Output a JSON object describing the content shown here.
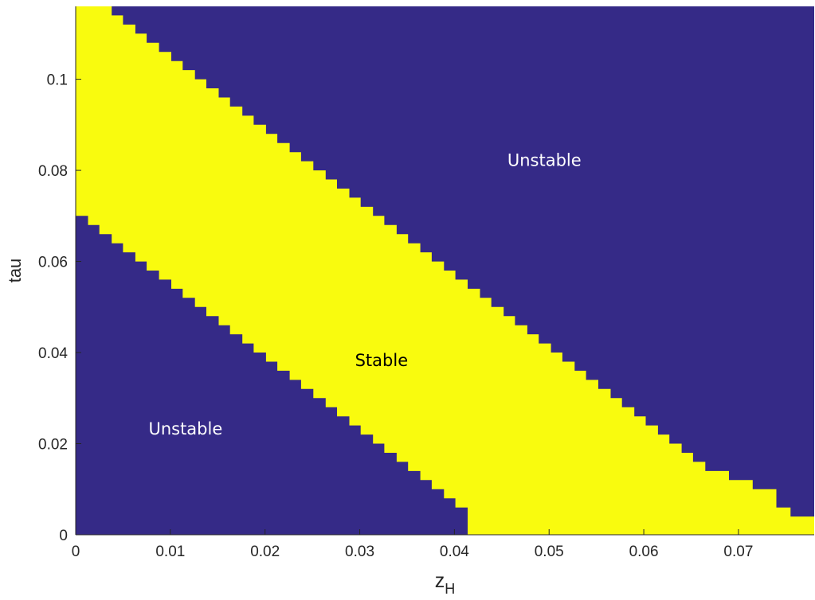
{
  "chart_data": {
    "type": "heatmap",
    "title": "",
    "xlabel": "z",
    "xlabel_subscript": "H",
    "ylabel": "tau",
    "xlim": [
      0,
      0.078
    ],
    "ylim": [
      0,
      0.116
    ],
    "x_ticks": [
      "0",
      "0.01",
      "0.02",
      "0.03",
      "0.04",
      "0.05",
      "0.06",
      "0.07"
    ],
    "y_ticks": [
      "0",
      "0.02",
      "0.04",
      "0.06",
      "0.08",
      "0.1"
    ],
    "grid": false,
    "colors": {
      "unstable": "#352a87",
      "stable": "#f9fb0e",
      "axis": "#262626",
      "unstable_label": "#ffffff",
      "stable_label": "#000000"
    },
    "region_labels": [
      {
        "text": "Unstable",
        "x": 0.0495,
        "y": 0.081,
        "class": "unstable"
      },
      {
        "text": "Stable",
        "x": 0.0323,
        "y": 0.037,
        "class": "stable"
      },
      {
        "text": "Unstable",
        "x": 0.0116,
        "y": 0.022,
        "class": "unstable"
      }
    ],
    "stability_boundaries": {
      "description": "Stable band lies between lower and upper boundary curves; region between them is stable",
      "upper": [
        [
          0.0038,
          0.116
        ],
        [
          0.0038,
          0.114
        ],
        [
          0.005,
          0.114
        ],
        [
          0.005,
          0.112
        ],
        [
          0.0063,
          0.112
        ],
        [
          0.0063,
          0.11
        ],
        [
          0.0075,
          0.11
        ],
        [
          0.0075,
          0.108
        ],
        [
          0.0088,
          0.108
        ],
        [
          0.0088,
          0.106
        ],
        [
          0.0101,
          0.106
        ],
        [
          0.0101,
          0.104
        ],
        [
          0.0113,
          0.104
        ],
        [
          0.0113,
          0.102
        ],
        [
          0.0126,
          0.102
        ],
        [
          0.0126,
          0.1
        ],
        [
          0.0138,
          0.1
        ],
        [
          0.0138,
          0.098
        ],
        [
          0.0151,
          0.098
        ],
        [
          0.0151,
          0.096
        ],
        [
          0.0163,
          0.096
        ],
        [
          0.0163,
          0.094
        ],
        [
          0.0176,
          0.094
        ],
        [
          0.0176,
          0.092
        ],
        [
          0.0188,
          0.092
        ],
        [
          0.0188,
          0.09
        ],
        [
          0.0201,
          0.09
        ],
        [
          0.0201,
          0.088
        ],
        [
          0.0213,
          0.088
        ],
        [
          0.0213,
          0.086
        ],
        [
          0.0226,
          0.086
        ],
        [
          0.0226,
          0.084
        ],
        [
          0.0238,
          0.084
        ],
        [
          0.0238,
          0.082
        ],
        [
          0.0251,
          0.082
        ],
        [
          0.0251,
          0.08
        ],
        [
          0.0264,
          0.08
        ],
        [
          0.0264,
          0.078
        ],
        [
          0.0276,
          0.078
        ],
        [
          0.0276,
          0.076
        ],
        [
          0.0289,
          0.076
        ],
        [
          0.0289,
          0.074
        ],
        [
          0.0301,
          0.074
        ],
        [
          0.0301,
          0.072
        ],
        [
          0.0314,
          0.072
        ],
        [
          0.0314,
          0.07
        ],
        [
          0.0326,
          0.07
        ],
        [
          0.0326,
          0.068
        ],
        [
          0.0339,
          0.068
        ],
        [
          0.0339,
          0.066
        ],
        [
          0.0351,
          0.066
        ],
        [
          0.0351,
          0.064
        ],
        [
          0.0364,
          0.064
        ],
        [
          0.0364,
          0.062
        ],
        [
          0.0376,
          0.062
        ],
        [
          0.0376,
          0.06
        ],
        [
          0.0389,
          0.06
        ],
        [
          0.0389,
          0.058
        ],
        [
          0.0401,
          0.058
        ],
        [
          0.0401,
          0.056
        ],
        [
          0.0414,
          0.056
        ],
        [
          0.0414,
          0.054
        ],
        [
          0.0427,
          0.054
        ],
        [
          0.0427,
          0.052
        ],
        [
          0.0439,
          0.052
        ],
        [
          0.0439,
          0.05
        ],
        [
          0.0452,
          0.05
        ],
        [
          0.0452,
          0.048
        ],
        [
          0.0464,
          0.048
        ],
        [
          0.0464,
          0.046
        ],
        [
          0.0477,
          0.046
        ],
        [
          0.0477,
          0.044
        ],
        [
          0.0489,
          0.044
        ],
        [
          0.0489,
          0.042
        ],
        [
          0.0502,
          0.042
        ],
        [
          0.0502,
          0.04
        ],
        [
          0.0514,
          0.04
        ],
        [
          0.0514,
          0.038
        ],
        [
          0.0527,
          0.038
        ],
        [
          0.0527,
          0.036
        ],
        [
          0.0539,
          0.036
        ],
        [
          0.0539,
          0.034
        ],
        [
          0.0552,
          0.034
        ],
        [
          0.0552,
          0.032
        ],
        [
          0.0565,
          0.032
        ],
        [
          0.0565,
          0.03
        ],
        [
          0.0577,
          0.03
        ],
        [
          0.0577,
          0.028
        ],
        [
          0.059,
          0.028
        ],
        [
          0.059,
          0.026
        ],
        [
          0.0602,
          0.026
        ],
        [
          0.0602,
          0.024
        ],
        [
          0.0615,
          0.024
        ],
        [
          0.0615,
          0.022
        ],
        [
          0.0627,
          0.022
        ],
        [
          0.0627,
          0.02
        ],
        [
          0.064,
          0.02
        ],
        [
          0.064,
          0.018
        ],
        [
          0.0652,
          0.018
        ],
        [
          0.0652,
          0.016
        ],
        [
          0.0665,
          0.016
        ],
        [
          0.0665,
          0.014
        ],
        [
          0.069,
          0.014
        ],
        [
          0.069,
          0.012
        ],
        [
          0.0715,
          0.012
        ],
        [
          0.0715,
          0.01
        ],
        [
          0.074,
          0.01
        ],
        [
          0.074,
          0.006
        ],
        [
          0.0755,
          0.006
        ],
        [
          0.0755,
          0.004
        ],
        [
          0.078,
          0.004
        ]
      ],
      "lower": [
        [
          0.0,
          0.07
        ],
        [
          0.0013,
          0.07
        ],
        [
          0.0013,
          0.068
        ],
        [
          0.0025,
          0.068
        ],
        [
          0.0025,
          0.066
        ],
        [
          0.0038,
          0.066
        ],
        [
          0.0038,
          0.064
        ],
        [
          0.005,
          0.064
        ],
        [
          0.005,
          0.062
        ],
        [
          0.0063,
          0.062
        ],
        [
          0.0063,
          0.06
        ],
        [
          0.0075,
          0.06
        ],
        [
          0.0075,
          0.058
        ],
        [
          0.0088,
          0.058
        ],
        [
          0.0088,
          0.056
        ],
        [
          0.0101,
          0.056
        ],
        [
          0.0101,
          0.054
        ],
        [
          0.0113,
          0.054
        ],
        [
          0.0113,
          0.052
        ],
        [
          0.0126,
          0.052
        ],
        [
          0.0126,
          0.05
        ],
        [
          0.0138,
          0.05
        ],
        [
          0.0138,
          0.048
        ],
        [
          0.0151,
          0.048
        ],
        [
          0.0151,
          0.046
        ],
        [
          0.0163,
          0.046
        ],
        [
          0.0163,
          0.044
        ],
        [
          0.0176,
          0.044
        ],
        [
          0.0176,
          0.042
        ],
        [
          0.0188,
          0.042
        ],
        [
          0.0188,
          0.04
        ],
        [
          0.0201,
          0.04
        ],
        [
          0.0201,
          0.038
        ],
        [
          0.0213,
          0.038
        ],
        [
          0.0213,
          0.036
        ],
        [
          0.0226,
          0.036
        ],
        [
          0.0226,
          0.034
        ],
        [
          0.0238,
          0.034
        ],
        [
          0.0238,
          0.032
        ],
        [
          0.0251,
          0.032
        ],
        [
          0.0251,
          0.03
        ],
        [
          0.0264,
          0.03
        ],
        [
          0.0264,
          0.028
        ],
        [
          0.0276,
          0.028
        ],
        [
          0.0276,
          0.026
        ],
        [
          0.0289,
          0.026
        ],
        [
          0.0289,
          0.024
        ],
        [
          0.0301,
          0.024
        ],
        [
          0.0301,
          0.022
        ],
        [
          0.0314,
          0.022
        ],
        [
          0.0314,
          0.02
        ],
        [
          0.0326,
          0.02
        ],
        [
          0.0326,
          0.018
        ],
        [
          0.0339,
          0.018
        ],
        [
          0.0339,
          0.016
        ],
        [
          0.0351,
          0.016
        ],
        [
          0.0351,
          0.014
        ],
        [
          0.0364,
          0.014
        ],
        [
          0.0364,
          0.012
        ],
        [
          0.0376,
          0.012
        ],
        [
          0.0376,
          0.01
        ],
        [
          0.0389,
          0.01
        ],
        [
          0.0389,
          0.008
        ],
        [
          0.0401,
          0.008
        ],
        [
          0.0401,
          0.006
        ],
        [
          0.0414,
          0.006
        ],
        [
          0.0414,
          0.0
        ]
      ]
    }
  }
}
